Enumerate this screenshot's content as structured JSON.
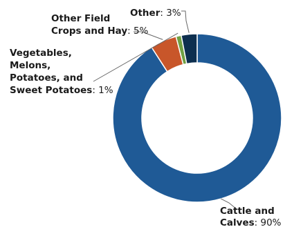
{
  "chart_data": {
    "type": "pie",
    "variant": "donut",
    "title": "",
    "slices": [
      {
        "name_lines": [
          "Cattle and",
          "Calves"
        ],
        "name": "Cattle and Calves",
        "value": 90,
        "value_label": ": 90%",
        "color": "#1f5a96"
      },
      {
        "name_lines": [
          "Other Field",
          "Crops and Hay"
        ],
        "name": "Other Field Crops and Hay",
        "value": 5,
        "value_label": ": 5%",
        "color": "#c8562a"
      },
      {
        "name_lines": [
          "Vegetables,",
          "Melons,",
          "Potatoes, and",
          "Sweet Potatoes"
        ],
        "name": "Vegetables, Melons, Potatoes, and Sweet Potatoes",
        "value": 1,
        "value_label": ": 1%",
        "color": "#6fa043"
      },
      {
        "name_lines": [
          "Other"
        ],
        "name": "Other",
        "value": 3,
        "value_label": ": 3%",
        "color": "#0d2f4f"
      }
    ],
    "legend": "none",
    "labels": "outside with leader lines"
  }
}
